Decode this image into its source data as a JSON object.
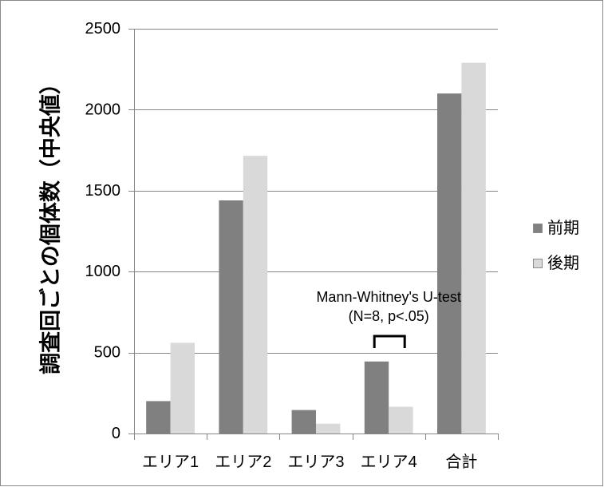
{
  "chart_data": {
    "type": "bar",
    "categories": [
      "エリア1",
      "エリア2",
      "エリア3",
      "エリア4",
      "合計"
    ],
    "series": [
      {
        "name": "前期",
        "values": [
          200,
          1440,
          145,
          445,
          2100
        ],
        "color": "#808080"
      },
      {
        "name": "後期",
        "values": [
          560,
          1715,
          60,
          165,
          2290
        ],
        "color": "#d9d9d9"
      }
    ],
    "ylabel": "調査回ごとの個体数（中央値）",
    "ylim": [
      0,
      2500
    ],
    "yticks": [
      0,
      500,
      1000,
      1500,
      2000,
      2500
    ],
    "grid": true,
    "legend": "right",
    "annotations": [
      {
        "category": "エリア4",
        "lines": [
          "Mann-Whitney's U-test",
          "(N=8, p<.05)"
        ],
        "bracket": true
      }
    ]
  }
}
